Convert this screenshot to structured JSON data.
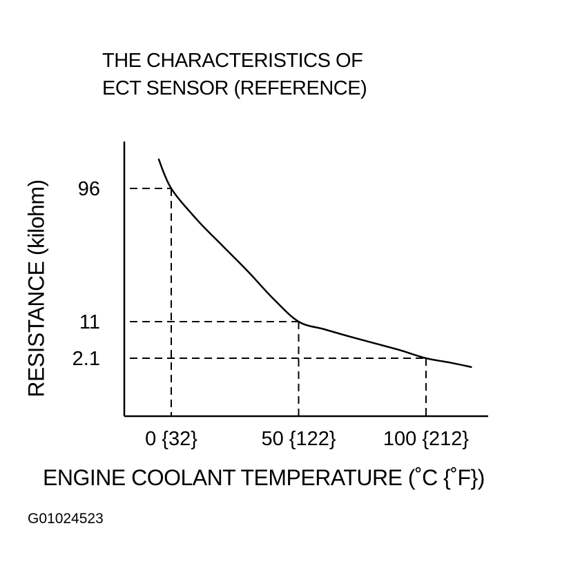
{
  "chart_data": {
    "type": "line",
    "title_lines": [
      "THE CHARACTERISTICS OF",
      "ECT SENSOR (REFERENCE)"
    ],
    "xlabel": "ENGINE COOLANT TEMPERATURE (˚C {˚F})",
    "ylabel": "RESISTANCE (kilohm)",
    "x_ticks": [
      {
        "value": 0,
        "label": "0 {32}"
      },
      {
        "value": 50,
        "label": "50 {122}"
      },
      {
        "value": 100,
        "label": "100 {212}"
      }
    ],
    "y_ticks": [
      {
        "value": 96,
        "label": "96"
      },
      {
        "value": 11,
        "label": "11"
      },
      {
        "value": 2.1,
        "label": "2.1"
      }
    ],
    "reference_points": [
      {
        "x": 0,
        "y": 96
      },
      {
        "x": 50,
        "y": 11
      },
      {
        "x": 100,
        "y": 2.1
      }
    ],
    "series": [
      {
        "x": [
          -5,
          0,
          10,
          20,
          30,
          40,
          50,
          60,
          70,
          80,
          90,
          100,
          110,
          118
        ],
        "y": [
          120,
          96,
          58,
          38,
          25,
          16,
          11,
          7.8,
          5.6,
          4.1,
          3.0,
          2.1,
          1.5,
          1.1
        ]
      }
    ],
    "y_scale": "non-linear",
    "grid": false,
    "reference_lines": "dashed"
  },
  "figure_id": "G01024523"
}
